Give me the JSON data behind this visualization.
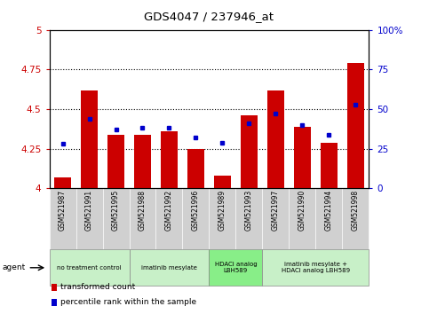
{
  "title": "GDS4047 / 237946_at",
  "samples": [
    "GSM521987",
    "GSM521991",
    "GSM521995",
    "GSM521988",
    "GSM521992",
    "GSM521996",
    "GSM521989",
    "GSM521993",
    "GSM521997",
    "GSM521990",
    "GSM521994",
    "GSM521998"
  ],
  "red_values": [
    4.07,
    4.62,
    4.34,
    4.34,
    4.36,
    4.25,
    4.08,
    4.46,
    4.62,
    4.39,
    4.29,
    4.79
  ],
  "blue_values": [
    28,
    44,
    37,
    38,
    38,
    32,
    29,
    41,
    47,
    40,
    34,
    53
  ],
  "ylim_left": [
    4.0,
    5.0
  ],
  "ylim_right": [
    0,
    100
  ],
  "yticks_left": [
    4.0,
    4.25,
    4.5,
    4.75,
    5.0
  ],
  "yticks_right": [
    0,
    25,
    50,
    75,
    100
  ],
  "ytick_left_labels": [
    "4",
    "4.25",
    "4.5",
    "4.75",
    "5"
  ],
  "ytick_right_labels": [
    "0",
    "25",
    "50",
    "75",
    "100%"
  ],
  "grid_lines": [
    4.25,
    4.5,
    4.75
  ],
  "agent_groups": [
    {
      "label": "no treatment control",
      "start": 0,
      "end": 3,
      "color": "#c8f0c8",
      "bright": false
    },
    {
      "label": "imatinib mesylate",
      "start": 3,
      "end": 6,
      "color": "#c8f0c8",
      "bright": false
    },
    {
      "label": "HDACi analog\nLBH589",
      "start": 6,
      "end": 8,
      "color": "#88ee88",
      "bright": true
    },
    {
      "label": "imatinib mesylate +\nHDACi analog LBH589",
      "start": 8,
      "end": 12,
      "color": "#c8f0c8",
      "bright": false
    }
  ],
  "bar_color": "#cc0000",
  "blue_color": "#0000cc",
  "bg_color": "#ffffff",
  "ylabel_left_color": "#cc0000",
  "ylabel_right_color": "#0000cc",
  "bar_width": 0.65,
  "sample_bg_color": "#d0d0d0",
  "sample_bg_edge": "#ffffff"
}
